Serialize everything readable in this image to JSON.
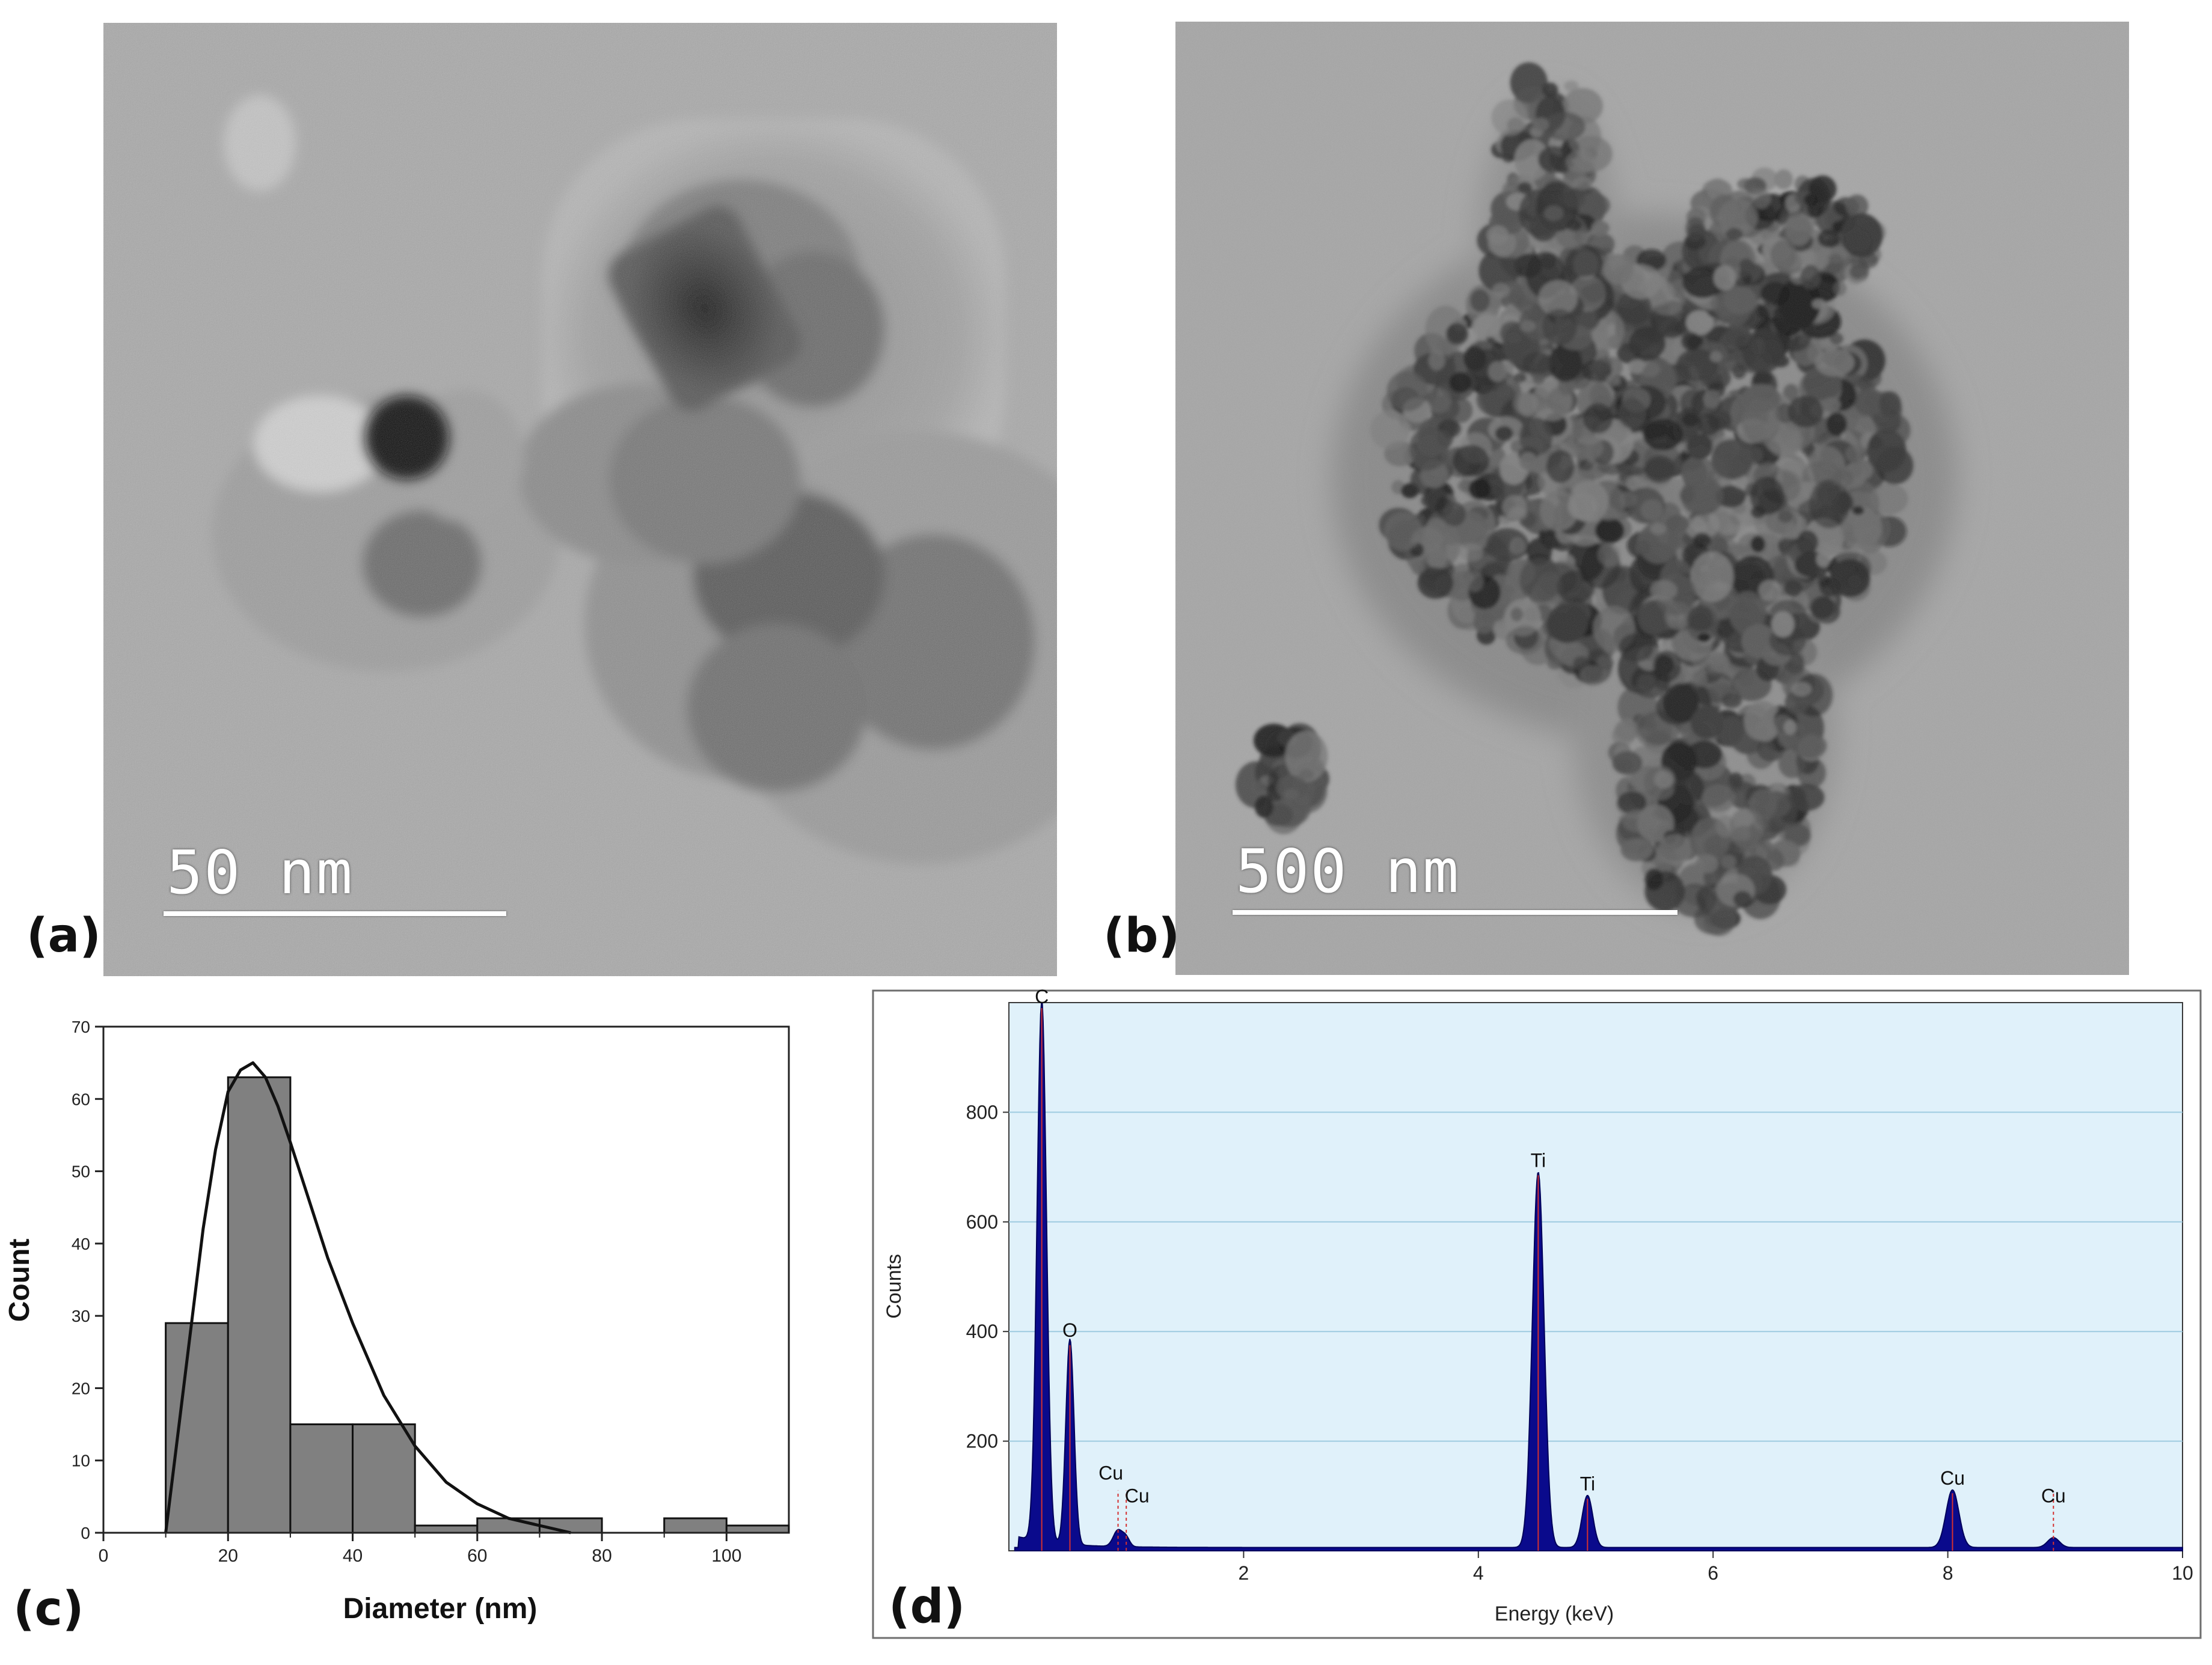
{
  "panels": {
    "a": {
      "label": "(a)",
      "scale_text": "50 nm"
    },
    "b": {
      "label": "(b)",
      "scale_text": "500 nm"
    },
    "c": {
      "label": "(c)"
    },
    "d": {
      "label": "(d)"
    }
  },
  "colors": {
    "histogram_fill": "#808080",
    "eds_background": "#e0f1fa",
    "eds_fill": "#0a0a8c",
    "eds_marker": "#d43030",
    "eds_grid": "#9ecbe0"
  },
  "chart_data": [
    {
      "type": "bar",
      "panel": "c",
      "title": "",
      "xlabel": "Diameter (nm)",
      "ylabel": "Count",
      "xlim": [
        0,
        110
      ],
      "ylim": [
        0,
        70
      ],
      "x_ticks": [
        "0",
        "20",
        "40",
        "60",
        "80",
        "100"
      ],
      "y_ticks": [
        "0",
        "10",
        "20",
        "30",
        "40",
        "50",
        "60",
        "70"
      ],
      "bins": [
        {
          "from": 10,
          "to": 20,
          "value": 29
        },
        {
          "from": 20,
          "to": 30,
          "value": 63
        },
        {
          "from": 30,
          "to": 40,
          "value": 15
        },
        {
          "from": 40,
          "to": 50,
          "value": 15
        },
        {
          "from": 50,
          "to": 60,
          "value": 1
        },
        {
          "from": 60,
          "to": 70,
          "value": 2
        },
        {
          "from": 70,
          "to": 80,
          "value": 2
        },
        {
          "from": 80,
          "to": 90,
          "value": 0
        },
        {
          "from": 90,
          "to": 100,
          "value": 2
        },
        {
          "from": 100,
          "to": 110,
          "value": 1
        }
      ],
      "fit_curve": {
        "type": "lognormal",
        "x": [
          10,
          12,
          14,
          16,
          18,
          20,
          22,
          24,
          26,
          28,
          30,
          33,
          36,
          40,
          45,
          50,
          55,
          60,
          65,
          70,
          75
        ],
        "y": [
          0,
          14,
          28,
          42,
          53,
          61,
          64,
          65,
          63,
          59,
          54,
          46,
          38,
          29,
          19,
          12,
          7,
          4,
          2,
          1,
          0
        ]
      },
      "grid": false,
      "legend": "none"
    },
    {
      "type": "area",
      "panel": "d",
      "title": "",
      "xlabel": "Energy (keV)",
      "ylabel": "Counts",
      "xlim": [
        0,
        10
      ],
      "ylim": [
        0,
        1000
      ],
      "x_ticks": [
        "2",
        "4",
        "6",
        "8",
        "10"
      ],
      "y_ticks": [
        "200",
        "400",
        "600",
        "800"
      ],
      "peaks": [
        {
          "label": "C",
          "energy": 0.28,
          "counts": 990,
          "width": 0.04
        },
        {
          "label": "O",
          "energy": 0.52,
          "counts": 375,
          "width": 0.035
        },
        {
          "label": "Cu",
          "energy": 0.93,
          "counts": 30,
          "width": 0.04
        },
        {
          "label": "Cu",
          "energy": 1.0,
          "counts": 15,
          "width": 0.03
        },
        {
          "label": "Ti",
          "energy": 4.51,
          "counts": 685,
          "width": 0.05
        },
        {
          "label": "Ti",
          "energy": 4.93,
          "counts": 95,
          "width": 0.045
        },
        {
          "label": "Cu",
          "energy": 8.04,
          "counts": 105,
          "width": 0.055
        },
        {
          "label": "Cu",
          "energy": 8.9,
          "counts": 18,
          "width": 0.05
        }
      ],
      "background_counts": 6,
      "grid": true,
      "legend": "none"
    }
  ]
}
